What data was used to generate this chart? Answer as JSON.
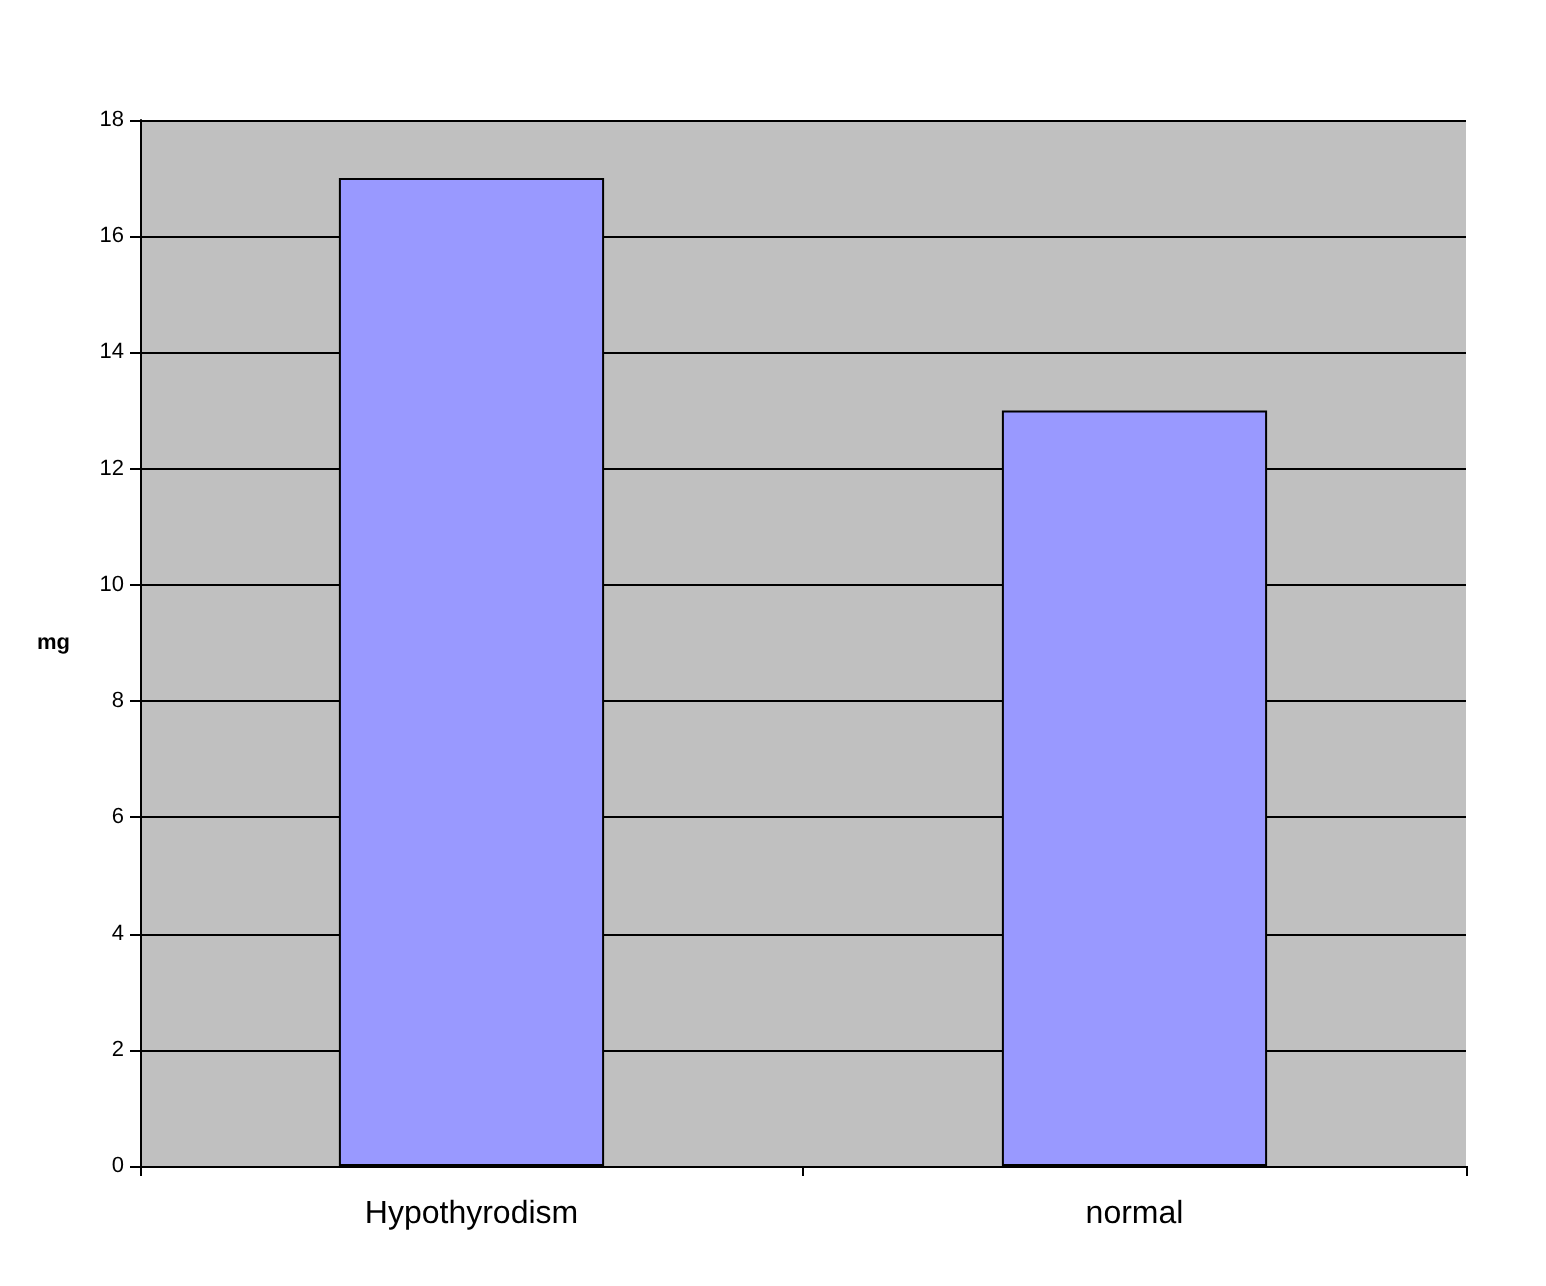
{
  "chart_data": {
    "type": "bar",
    "ylabel": "mg",
    "categories": [
      "Hypothyrodism",
      "normal"
    ],
    "values": [
      17,
      13
    ],
    "color": "#9999ff",
    "ylim": [
      0,
      18
    ],
    "yticks": [
      0,
      2,
      4,
      6,
      8,
      10,
      12,
      14,
      16,
      18
    ],
    "grid": "y"
  }
}
